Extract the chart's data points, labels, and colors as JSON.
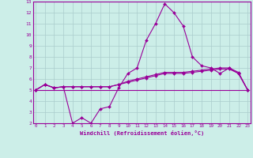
{
  "xlabel": "Windchill (Refroidissement éolien,°C)",
  "ylim": [
    2,
    13
  ],
  "yticks": [
    2,
    3,
    4,
    5,
    6,
    7,
    8,
    9,
    10,
    11,
    12,
    13
  ],
  "xticks": [
    0,
    1,
    2,
    3,
    4,
    5,
    6,
    7,
    8,
    9,
    10,
    11,
    12,
    13,
    14,
    15,
    16,
    17,
    18,
    19,
    20,
    21,
    22,
    23
  ],
  "bg_color": "#cceee8",
  "line_color": "#990099",
  "grid_color": "#aacccc",
  "line1_x": [
    0,
    1,
    2,
    3,
    4,
    5,
    6,
    7,
    8,
    9,
    10,
    11,
    12,
    13,
    14,
    15,
    16,
    17,
    18,
    19,
    20,
    21,
    22,
    23
  ],
  "line1_y": [
    5.0,
    5.5,
    5.2,
    5.3,
    2.0,
    2.5,
    2.0,
    3.3,
    3.5,
    5.2,
    6.5,
    7.0,
    9.5,
    11.0,
    12.8,
    12.0,
    10.8,
    8.0,
    7.2,
    7.0,
    6.5,
    7.0,
    6.5,
    5.0
  ],
  "line2_x": [
    0,
    1,
    2,
    3,
    4,
    5,
    6,
    7,
    8,
    9,
    10,
    11,
    12,
    13,
    14,
    15,
    16,
    17,
    18,
    19,
    20,
    21,
    22,
    23
  ],
  "line2_y": [
    5.0,
    5.0,
    5.0,
    5.0,
    5.0,
    5.0,
    5.0,
    5.0,
    5.0,
    5.0,
    5.0,
    5.0,
    5.0,
    5.0,
    5.0,
    5.0,
    5.0,
    5.0,
    5.0,
    5.0,
    5.0,
    5.0,
    5.0,
    5.0
  ],
  "line3_x": [
    0,
    1,
    2,
    3,
    4,
    5,
    6,
    7,
    8,
    9,
    10,
    11,
    12,
    13,
    14,
    15,
    16,
    17,
    18,
    19,
    20,
    21,
    22,
    23
  ],
  "line3_y": [
    5.0,
    5.5,
    5.2,
    5.3,
    5.3,
    5.3,
    5.3,
    5.3,
    5.3,
    5.5,
    5.7,
    5.9,
    6.1,
    6.3,
    6.5,
    6.5,
    6.5,
    6.6,
    6.7,
    6.8,
    6.9,
    6.9,
    6.5,
    5.0
  ],
  "line4_x": [
    0,
    1,
    2,
    3,
    4,
    5,
    6,
    7,
    8,
    9,
    10,
    11,
    12,
    13,
    14,
    15,
    16,
    17,
    18,
    19,
    20,
    21,
    22,
    23
  ],
  "line4_y": [
    5.0,
    5.5,
    5.2,
    5.3,
    5.3,
    5.3,
    5.3,
    5.3,
    5.3,
    5.5,
    5.8,
    6.0,
    6.2,
    6.4,
    6.6,
    6.6,
    6.6,
    6.7,
    6.8,
    6.9,
    7.0,
    7.0,
    6.6,
    5.0
  ]
}
